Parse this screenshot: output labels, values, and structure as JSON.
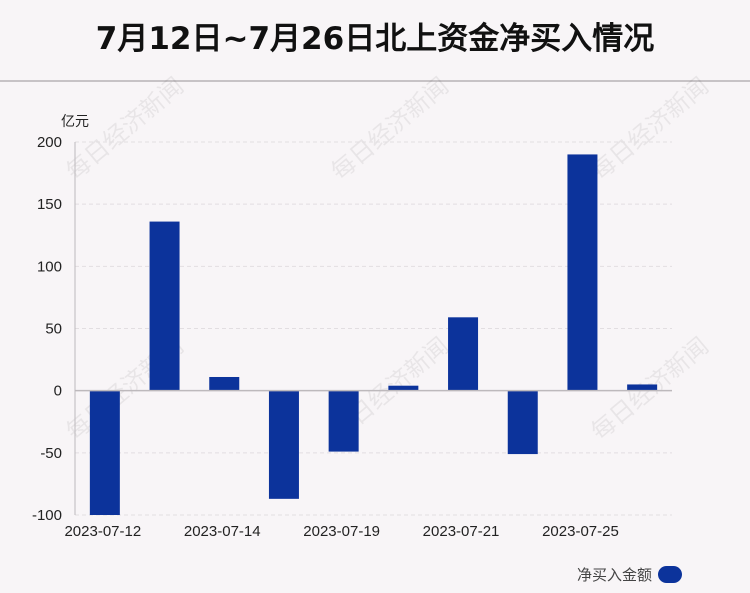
{
  "title": "7月12日~7月26日北上资金净买入情况",
  "watermark": "每日经济新闻",
  "colors": {
    "bar": "#0c339b",
    "axis": "#bdb9bc",
    "grid": "#e2dee1"
  },
  "chart_data": {
    "type": "bar",
    "unit_label": "亿元",
    "x_tick_labels": [
      "2023-07-12",
      "2023-07-14",
      "2023-07-19",
      "2023-07-21",
      "2023-07-25"
    ],
    "y_ticks": [
      200,
      150,
      100,
      50,
      0,
      -50,
      -100
    ],
    "ylim": [
      -100,
      200
    ],
    "series": [
      {
        "name": "净买入金额",
        "values": [
          -100,
          136,
          11,
          -87,
          -49,
          4,
          59,
          -51,
          190,
          5
        ]
      }
    ],
    "legend": {
      "label": "净买入金额",
      "position": "bottom-right"
    },
    "grid": true
  }
}
